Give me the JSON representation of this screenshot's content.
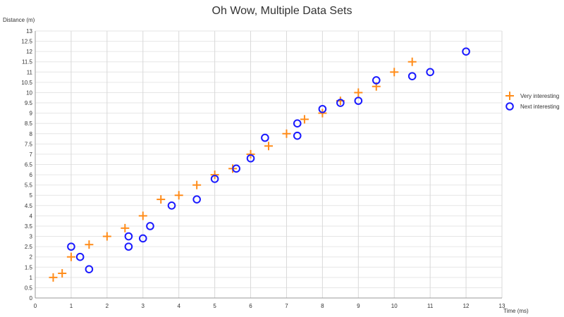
{
  "chart_data": {
    "type": "scatter",
    "title": "Oh Wow, Multiple Data Sets",
    "xlabel": "Time (ms)",
    "ylabel": "Distance (m)",
    "xlim": [
      0,
      13
    ],
    "ylim": [
      0,
      13
    ],
    "x_ticks": [
      0,
      1,
      2,
      3,
      4,
      5,
      6,
      7,
      8,
      9,
      10,
      11,
      12,
      13
    ],
    "y_ticks": [
      0,
      0.5,
      1,
      1.5,
      2,
      2.5,
      3,
      3.5,
      4,
      4.5,
      5,
      5.5,
      6,
      6.5,
      7,
      7.5,
      8,
      8.5,
      9,
      9.5,
      10,
      10.5,
      11,
      11.5,
      12,
      12.5,
      13
    ],
    "grid": true,
    "legend_position": "right",
    "series": [
      {
        "name": "Very interesting",
        "marker": "plus",
        "color": "#ff8c1a",
        "points": [
          [
            0.5,
            1.0
          ],
          [
            0.75,
            1.2
          ],
          [
            1.0,
            2.0
          ],
          [
            1.5,
            2.6
          ],
          [
            2.0,
            3.0
          ],
          [
            2.5,
            3.4
          ],
          [
            3.0,
            4.0
          ],
          [
            3.5,
            4.8
          ],
          [
            4.0,
            5.0
          ],
          [
            4.5,
            5.5
          ],
          [
            5.0,
            6.0
          ],
          [
            5.5,
            6.3
          ],
          [
            6.0,
            7.0
          ],
          [
            6.5,
            7.4
          ],
          [
            7.0,
            8.0
          ],
          [
            7.5,
            8.7
          ],
          [
            8.0,
            9.0
          ],
          [
            8.5,
            9.6
          ],
          [
            9.0,
            10.0
          ],
          [
            9.5,
            10.3
          ],
          [
            10.0,
            11.0
          ],
          [
            10.5,
            11.5
          ]
        ]
      },
      {
        "name": "Next interesting",
        "marker": "circle",
        "color": "#1a1aff",
        "points": [
          [
            1.0,
            2.5
          ],
          [
            1.25,
            2.0
          ],
          [
            1.5,
            1.4
          ],
          [
            2.6,
            3.0
          ],
          [
            2.6,
            2.5
          ],
          [
            3.0,
            2.9
          ],
          [
            3.2,
            3.5
          ],
          [
            3.8,
            4.5
          ],
          [
            4.5,
            4.8
          ],
          [
            5.0,
            5.8
          ],
          [
            5.6,
            6.3
          ],
          [
            6.0,
            6.8
          ],
          [
            6.4,
            7.8
          ],
          [
            7.3,
            8.5
          ],
          [
            7.3,
            7.9
          ],
          [
            8.0,
            9.2
          ],
          [
            8.5,
            9.5
          ],
          [
            9.0,
            9.6
          ],
          [
            9.5,
            10.6
          ],
          [
            10.5,
            10.8
          ],
          [
            11.0,
            11.0
          ],
          [
            12.0,
            12.0
          ]
        ]
      }
    ]
  }
}
